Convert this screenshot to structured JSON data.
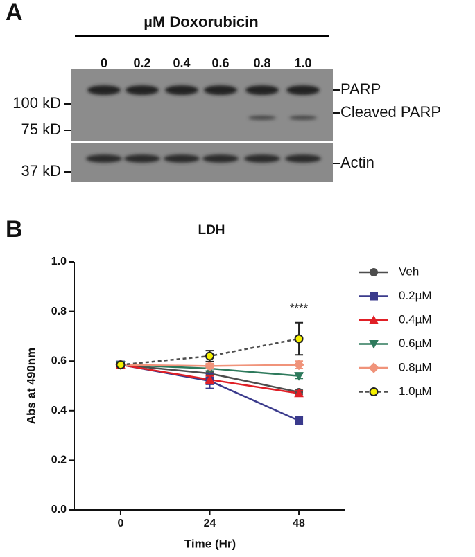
{
  "panel_a": {
    "label": "A",
    "header": "µM Doxorubicin",
    "lanes": [
      "0",
      "0.2",
      "0.4",
      "0.6",
      "0.8",
      "1.0"
    ],
    "band_labels": [
      "PARP",
      "Cleaved PARP",
      "Actin"
    ],
    "size_markers": [
      "100 kD",
      "75 kD",
      "37 kD"
    ]
  },
  "chart_data": {
    "type": "line",
    "panel_label": "B",
    "title": "LDH",
    "x_label": "Time (Hr)",
    "y_label": "Abs at 490nm",
    "x": [
      0,
      24,
      48
    ],
    "xlim": [
      -12.5,
      60.5
    ],
    "xticks": [
      0,
      24,
      48
    ],
    "ylim": [
      0,
      1
    ],
    "yticks": [
      {
        "value": 0,
        "label": "0.0"
      },
      0.2,
      0.4,
      0.6,
      0.8,
      {
        "value": 1,
        "label": "1.0"
      }
    ],
    "series": [
      {
        "name": "Veh",
        "color": "#4d4d4d",
        "marker": "circle",
        "values": [
          0.585,
          0.55,
          0.475
        ],
        "errors": [
          0.005,
          0.01,
          0.008
        ]
      },
      {
        "name": "0.2µM",
        "color": "#3a3a8c",
        "marker": "square",
        "values": [
          0.585,
          0.52,
          0.36
        ],
        "errors": [
          0.005,
          0.03,
          0.015
        ]
      },
      {
        "name": "0.4µM",
        "color": "#e01f26",
        "marker": "triangle-up",
        "values": [
          0.585,
          0.525,
          0.47
        ],
        "errors": [
          0.005,
          0.015,
          0.01
        ]
      },
      {
        "name": "0.6µM",
        "color": "#2e7a5c",
        "marker": "triangle-down",
        "values": [
          0.585,
          0.57,
          0.54
        ],
        "errors": [
          0.005,
          0.01,
          0.01
        ]
      },
      {
        "name": "0.8µM",
        "color": "#f0937a",
        "marker": "diamond",
        "values": [
          0.585,
          0.58,
          0.585
        ],
        "errors": [
          0.005,
          0.01,
          0.015
        ]
      },
      {
        "name": "1.0µM",
        "color": "#4d4d4d",
        "fill": "#f5f000",
        "marker": "circle",
        "dashed": true,
        "values": [
          0.585,
          0.62,
          0.69
        ],
        "errors": [
          0.005,
          0.022,
          0.065
        ]
      }
    ],
    "annotation": "****"
  }
}
